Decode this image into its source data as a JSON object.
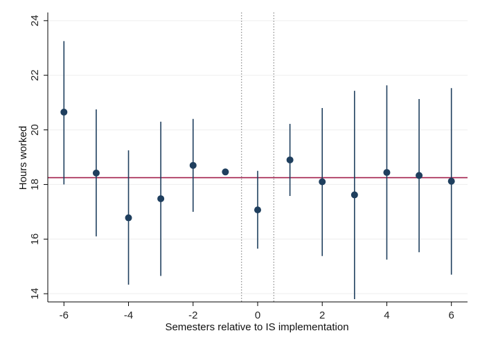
{
  "chart_data": {
    "type": "scatter",
    "xlabel": "Semesters relative to IS implementation",
    "ylabel": "Hours worked",
    "xlim": [
      -6.5,
      6.5
    ],
    "ylim": [
      13.7,
      24.3
    ],
    "xticks": [
      -6,
      -4,
      -2,
      0,
      2,
      4,
      6
    ],
    "xtick_labels": [
      "-6",
      "-4",
      "-2",
      "0",
      "2",
      "4",
      "6"
    ],
    "yticks": [
      14,
      16,
      18,
      20,
      22,
      24
    ],
    "ytick_labels": [
      "14",
      "16",
      "18",
      "20",
      "22",
      "24"
    ],
    "grid": "horizontal",
    "reference_line_y": 18.25,
    "vertical_dotted_lines_x": [
      -0.5,
      0.5
    ],
    "points": [
      {
        "x": -6,
        "y": 20.65,
        "lo": 18.0,
        "hi": 23.25
      },
      {
        "x": -5,
        "y": 18.42,
        "lo": 16.1,
        "hi": 20.75
      },
      {
        "x": -4,
        "y": 16.78,
        "lo": 14.33,
        "hi": 19.25
      },
      {
        "x": -3,
        "y": 17.48,
        "lo": 14.65,
        "hi": 20.3
      },
      {
        "x": -2,
        "y": 18.7,
        "lo": 17.0,
        "hi": 20.4
      },
      {
        "x": -1,
        "y": 18.46,
        "lo": 18.46,
        "hi": 18.46
      },
      {
        "x": 0,
        "y": 17.07,
        "lo": 15.65,
        "hi": 18.5
      },
      {
        "x": 1,
        "y": 18.9,
        "lo": 17.58,
        "hi": 20.22
      },
      {
        "x": 2,
        "y": 18.1,
        "lo": 15.38,
        "hi": 20.8
      },
      {
        "x": 3,
        "y": 17.62,
        "lo": 13.8,
        "hi": 21.43
      },
      {
        "x": 4,
        "y": 18.44,
        "lo": 15.25,
        "hi": 21.63
      },
      {
        "x": 5,
        "y": 18.33,
        "lo": 15.52,
        "hi": 21.13
      },
      {
        "x": 6,
        "y": 18.12,
        "lo": 14.7,
        "hi": 21.53
      }
    ],
    "colors": {
      "point": "#1f3f5e",
      "ci": "#1f3f5e",
      "reference": "#a11d4a",
      "grid": "#eeeeee",
      "axis": "#000000",
      "dotted": "#888888"
    }
  }
}
